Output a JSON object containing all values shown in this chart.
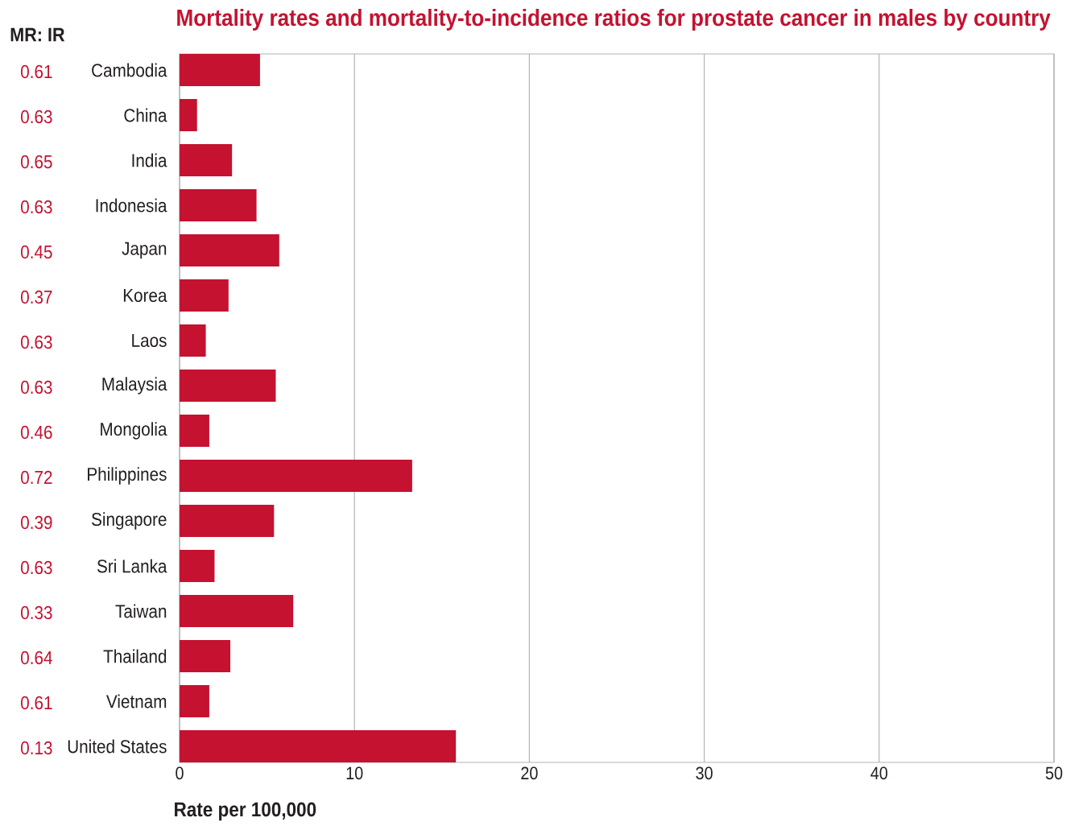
{
  "chart_data": {
    "type": "bar",
    "orientation": "horizontal",
    "title": "Mortality rates and mortality-to-incidence ratios for prostate cancer in males by country",
    "xlabel": "Rate per 100,000",
    "categories": [
      "Cambodia",
      "China",
      "India",
      "Indonesia",
      "Japan",
      "Korea",
      "Laos",
      "Malaysia",
      "Mongolia",
      "Philippines",
      "Singapore",
      "Sri Lanka",
      "Taiwan",
      "Thailand",
      "Vietnam",
      "United States"
    ],
    "values": [
      4.6,
      1.0,
      3.0,
      4.4,
      5.7,
      2.8,
      1.5,
      5.5,
      1.7,
      13.3,
      5.4,
      2.0,
      6.5,
      2.9,
      1.7,
      15.8
    ],
    "color": "#c41230",
    "xlim": [
      0,
      50
    ],
    "xticks": [
      0,
      10,
      20,
      30,
      40,
      50
    ],
    "grid": "x",
    "annotations": [
      "MR: IR",
      "0.61",
      "0.63",
      "0.65",
      "0.63",
      "0.45",
      "0.37",
      "0.63",
      "0.63",
      "0.46",
      "0.72",
      "0.39",
      "0.63",
      "0.33",
      "0.64",
      "0.61",
      "0.13"
    ]
  }
}
